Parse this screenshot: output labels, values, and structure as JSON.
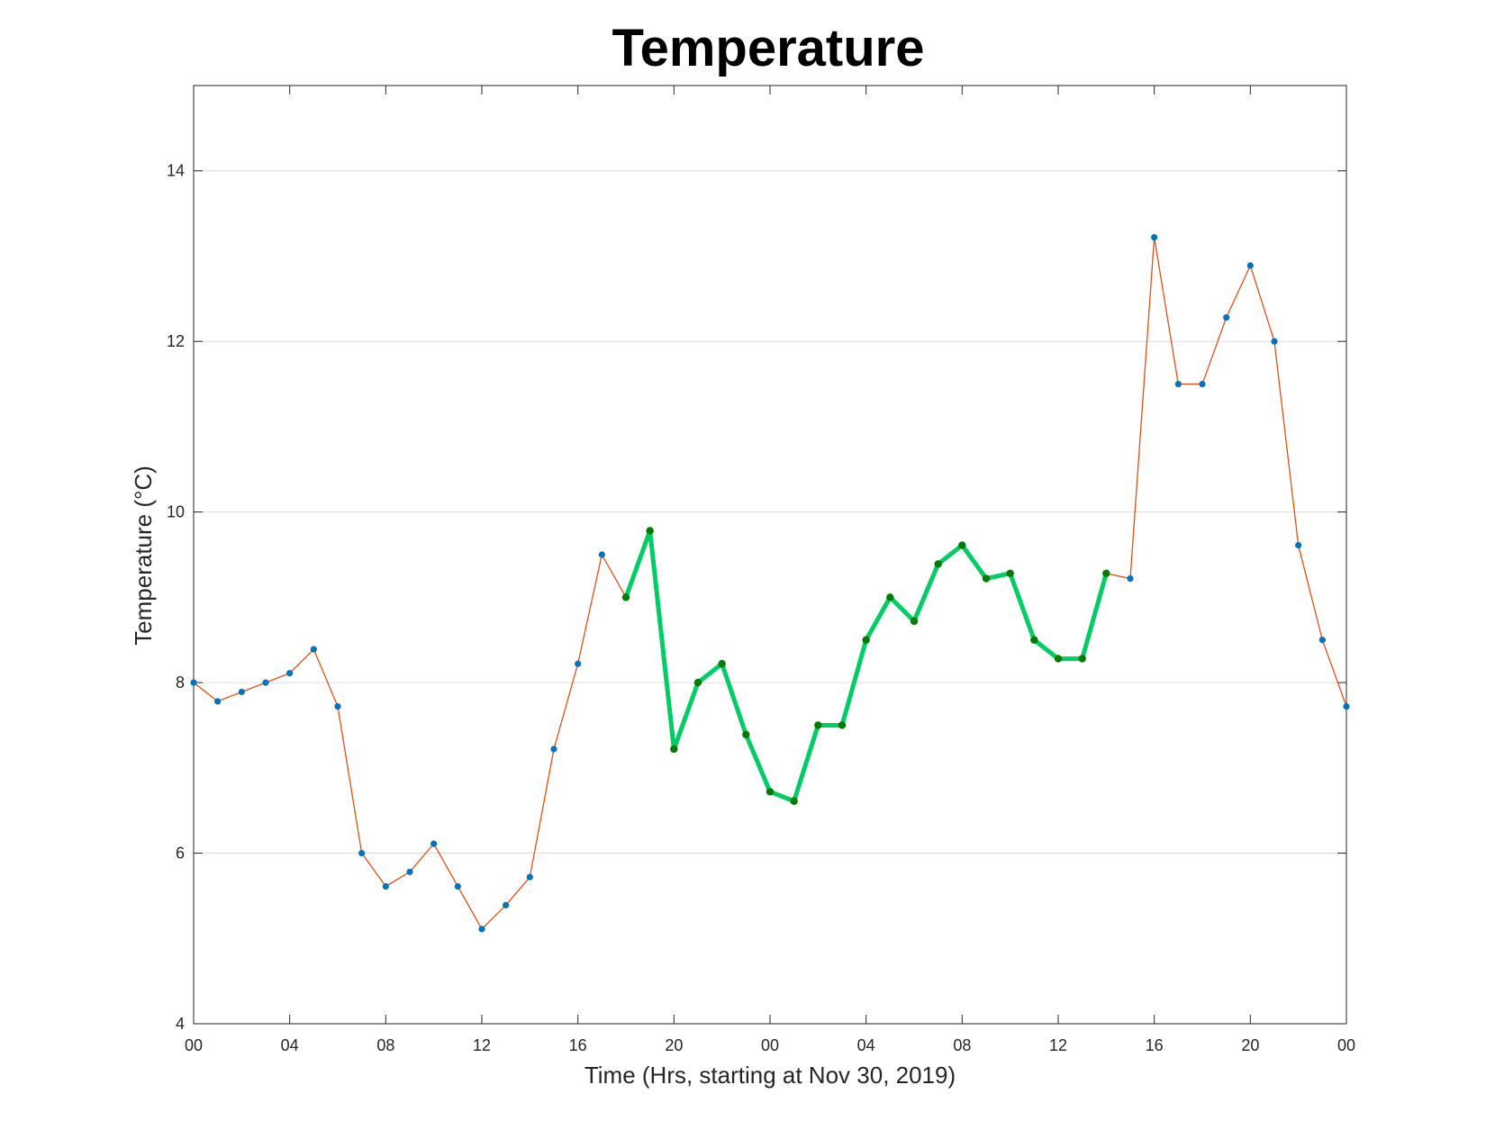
{
  "chart_data": {
    "type": "line",
    "title": "Temperature",
    "xlabel": "Time (Hrs, starting at Nov 30, 2019)",
    "ylabel": "Temperature (°C)",
    "ylim": [
      4,
      15
    ],
    "xlim": [
      "2019-11-30 00:00",
      "2019-12-02 00:00"
    ],
    "grid": "horizontal",
    "x_tick_labels": [
      "00",
      "04",
      "08",
      "12",
      "16",
      "20",
      "00",
      "04",
      "08",
      "12",
      "16",
      "20",
      "00"
    ],
    "y_tick_labels": [
      "4",
      "6",
      "8",
      "10",
      "12",
      "14"
    ],
    "x": [
      "2019-11-30 00:00",
      "2019-11-30 01:00",
      "2019-11-30 02:00",
      "2019-11-30 03:00",
      "2019-11-30 04:00",
      "2019-11-30 05:00",
      "2019-11-30 06:00",
      "2019-11-30 07:00",
      "2019-11-30 08:00",
      "2019-11-30 09:00",
      "2019-11-30 10:00",
      "2019-11-30 11:00",
      "2019-11-30 12:00",
      "2019-11-30 13:00",
      "2019-11-30 14:00",
      "2019-11-30 15:00",
      "2019-11-30 16:00",
      "2019-11-30 17:00",
      "2019-11-30 18:00",
      "2019-11-30 19:00",
      "2019-11-30 20:00",
      "2019-11-30 21:00",
      "2019-11-30 22:00",
      "2019-11-30 23:00",
      "2019-12-01 00:00",
      "2019-12-01 01:00",
      "2019-12-01 02:00",
      "2019-12-01 03:00",
      "2019-12-01 04:00",
      "2019-12-01 05:00",
      "2019-12-01 06:00",
      "2019-12-01 07:00",
      "2019-12-01 08:00",
      "2019-12-01 09:00",
      "2019-12-01 10:00",
      "2019-12-01 11:00",
      "2019-12-01 12:00",
      "2019-12-01 13:00",
      "2019-12-01 14:00",
      "2019-12-01 15:00",
      "2019-12-01 16:00",
      "2019-12-01 17:00",
      "2019-12-01 18:00",
      "2019-12-01 19:00",
      "2019-12-01 20:00",
      "2019-12-01 21:00",
      "2019-12-01 22:00",
      "2019-12-01 23:00",
      "2019-12-02 00:00"
    ],
    "series": [
      {
        "color": "#d95319",
        "marker_color": "#0072bd",
        "values": [
          8.0,
          7.78,
          7.89,
          8.0,
          8.11,
          8.39,
          7.72,
          6.0,
          5.61,
          5.78,
          6.11,
          5.61,
          5.11,
          5.39,
          5.72,
          7.22,
          8.22,
          9.5,
          9.0,
          9.78,
          7.22,
          8.0,
          8.22,
          7.39,
          6.72,
          6.61,
          7.5,
          7.5,
          8.5,
          9.0,
          8.72,
          9.39,
          9.61,
          9.22,
          9.28,
          8.5,
          8.28,
          8.28,
          9.28,
          9.22,
          13.22,
          11.5,
          11.5,
          12.28,
          12.89,
          12.0,
          9.61,
          8.5,
          7.72
        ]
      },
      {
        "color": "#00cc66",
        "marker_color": "#007a00",
        "start_index": 18,
        "end_index": 38
      }
    ]
  }
}
